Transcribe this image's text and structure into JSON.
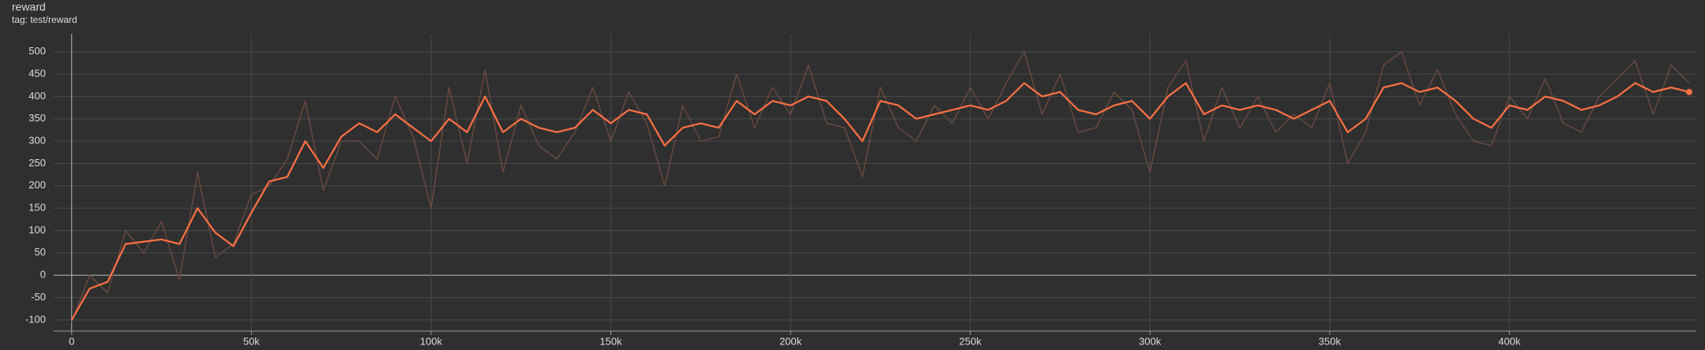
{
  "chart_data": {
    "type": "line",
    "title": "reward",
    "subtitle": "tag: test/reward",
    "x": [
      0,
      5000,
      10000,
      15000,
      20000,
      25000,
      30000,
      35000,
      40000,
      45000,
      50000,
      55000,
      60000,
      65000,
      70000,
      75000,
      80000,
      85000,
      90000,
      95000,
      100000,
      105000,
      110000,
      115000,
      120000,
      125000,
      130000,
      135000,
      140000,
      145000,
      150000,
      155000,
      160000,
      165000,
      170000,
      175000,
      180000,
      185000,
      190000,
      195000,
      200000,
      205000,
      210000,
      215000,
      220000,
      225000,
      230000,
      235000,
      240000,
      245000,
      250000,
      255000,
      260000,
      265000,
      270000,
      275000,
      280000,
      285000,
      290000,
      295000,
      300000,
      305000,
      310000,
      315000,
      320000,
      325000,
      330000,
      335000,
      340000,
      345000,
      350000,
      355000,
      360000,
      365000,
      370000,
      375000,
      380000,
      385000,
      390000,
      395000,
      400000,
      405000,
      410000,
      415000,
      420000,
      425000,
      430000,
      435000,
      440000,
      445000,
      450000
    ],
    "series": [
      {
        "color": "#ff7043",
        "values": [
          -100,
          -30,
          -15,
          70,
          75,
          80,
          70,
          150,
          95,
          65,
          140,
          210,
          220,
          300,
          240,
          310,
          340,
          320,
          360,
          330,
          300,
          350,
          320,
          400,
          320,
          350,
          330,
          320,
          330,
          370,
          340,
          370,
          360,
          290,
          330,
          340,
          330,
          390,
          360,
          390,
          380,
          400,
          390,
          350,
          300,
          390,
          380,
          350,
          360,
          370,
          380,
          370,
          390,
          430,
          400,
          410,
          370,
          360,
          380,
          390,
          350,
          400,
          430,
          360,
          380,
          370,
          380,
          370,
          350,
          370,
          390,
          320,
          350,
          420,
          430,
          410,
          420,
          390,
          350,
          330,
          380,
          370,
          400,
          390,
          370,
          380,
          400,
          430,
          410,
          420,
          410
        ]
      },
      {
        "color": "#6b4a40",
        "values": [
          -105,
          0,
          -40,
          100,
          50,
          120,
          -10,
          230,
          40,
          70,
          180,
          200,
          260,
          390,
          190,
          300,
          300,
          260,
          400,
          310,
          150,
          420,
          250,
          460,
          230,
          380,
          290,
          260,
          320,
          420,
          300,
          410,
          340,
          200,
          380,
          300,
          310,
          450,
          330,
          420,
          360,
          470,
          340,
          330,
          220,
          420,
          330,
          300,
          380,
          340,
          420,
          350,
          430,
          500,
          360,
          450,
          320,
          330,
          410,
          370,
          230,
          420,
          480,
          300,
          420,
          330,
          400,
          320,
          360,
          330,
          430,
          250,
          320,
          470,
          500,
          380,
          460,
          360,
          300,
          290,
          400,
          350,
          440,
          340,
          320,
          400,
          440,
          480,
          360,
          470,
          430
        ]
      }
    ],
    "xlim": [
      -5000,
      452000
    ],
    "ylim": [
      -125,
      540
    ],
    "xticks": [
      0,
      {
        "value": 50000,
        "label": "50k"
      },
      {
        "value": 100000,
        "label": "100k"
      },
      {
        "value": 150000,
        "label": "150k"
      },
      {
        "value": 200000,
        "label": "200k"
      },
      {
        "value": 250000,
        "label": "250k"
      },
      {
        "value": 300000,
        "label": "300k"
      },
      {
        "value": 350000,
        "label": "350k"
      },
      {
        "value": 400000,
        "label": "400k"
      }
    ],
    "yticks": [
      -100,
      -50,
      0,
      50,
      100,
      150,
      200,
      250,
      300,
      350,
      400,
      450,
      500
    ],
    "grid": true
  }
}
